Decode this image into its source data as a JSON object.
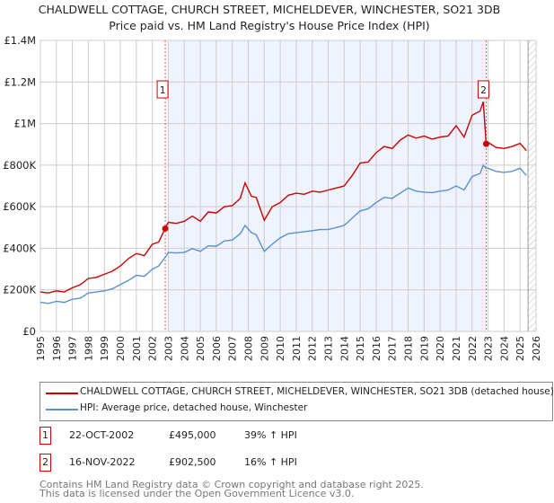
{
  "chart_data": {
    "type": "line",
    "title": "CHALDWELL COTTAGE, CHURCH STREET, MICHELDEVER, WINCHESTER, SO21 3DB",
    "subtitle": "Price paid vs. HM Land Registry's House Price Index (HPI)",
    "xlim": [
      1995,
      2026
    ],
    "ylim": [
      0,
      1400000
    ],
    "yticks": [
      0,
      200000,
      400000,
      600000,
      800000,
      1000000,
      1200000,
      1400000
    ],
    "ytick_labels": [
      "£0",
      "£200K",
      "£400K",
      "£600K",
      "£800K",
      "£1M",
      "£1.2M",
      "£1.4M"
    ],
    "xticks": [
      1995,
      1996,
      1997,
      1998,
      1999,
      2000,
      2001,
      2002,
      2003,
      2004,
      2005,
      2006,
      2007,
      2008,
      2009,
      2010,
      2011,
      2012,
      2013,
      2014,
      2015,
      2016,
      2017,
      2018,
      2019,
      2020,
      2021,
      2022,
      2023,
      2024,
      2025,
      2026
    ],
    "grid": true,
    "series": [
      {
        "name": "CHALDWELL COTTAGE, CHURCH STREET, MICHELDEVER, WINCHESTER, SO21 3DB (detached house)",
        "color": "#cc0000",
        "x": [
          1995,
          1995.5,
          1996,
          1996.5,
          1997,
          1997.5,
          1998,
          1998.5,
          1999,
          1999.5,
          2000,
          2000.5,
          2001,
          2001.5,
          2002,
          2002.4,
          2002.8,
          2003,
          2003.5,
          2004,
          2004.5,
          2005,
          2005.5,
          2006,
          2006.5,
          2007,
          2007.5,
          2007.8,
          2008.2,
          2008.5,
          2009,
          2009.5,
          2010,
          2010.5,
          2011,
          2011.5,
          2012,
          2012.5,
          2013,
          2013.5,
          2014,
          2014.5,
          2015,
          2015.5,
          2016,
          2016.5,
          2017,
          2017.5,
          2018,
          2018.5,
          2019,
          2019.5,
          2020,
          2020.5,
          2021,
          2021.5,
          2022,
          2022.5,
          2022.7,
          2022.88,
          2023,
          2023.5,
          2024,
          2024.5,
          2025,
          2025.4
        ],
        "y": [
          190000,
          185000,
          195000,
          190000,
          210000,
          225000,
          255000,
          260000,
          275000,
          290000,
          315000,
          350000,
          375000,
          365000,
          420000,
          430000,
          495000,
          525000,
          520000,
          530000,
          555000,
          530000,
          575000,
          570000,
          600000,
          605000,
          640000,
          715000,
          650000,
          645000,
          535000,
          600000,
          620000,
          655000,
          665000,
          660000,
          675000,
          670000,
          680000,
          690000,
          700000,
          750000,
          810000,
          815000,
          860000,
          890000,
          880000,
          920000,
          945000,
          930000,
          940000,
          925000,
          935000,
          940000,
          990000,
          935000,
          1040000,
          1060000,
          1105000,
          902500,
          910000,
          885000,
          880000,
          890000,
          905000,
          870000
        ]
      },
      {
        "name": "HPI: Average price, detached house, Winchester",
        "color": "#5b8fd1",
        "x": [
          1995,
          1995.5,
          1996,
          1996.5,
          1997,
          1997.5,
          1998,
          1998.5,
          1999,
          1999.5,
          2000,
          2000.5,
          2001,
          2001.5,
          2002,
          2002.4,
          2002.8,
          2003,
          2003.5,
          2004,
          2004.5,
          2005,
          2005.5,
          2006,
          2006.5,
          2007,
          2007.5,
          2007.8,
          2008.2,
          2008.5,
          2009,
          2009.5,
          2010,
          2010.5,
          2011,
          2011.5,
          2012,
          2012.5,
          2013,
          2013.5,
          2014,
          2014.5,
          2015,
          2015.5,
          2016,
          2016.5,
          2017,
          2017.5,
          2018,
          2018.5,
          2019,
          2019.5,
          2020,
          2020.5,
          2021,
          2021.5,
          2022,
          2022.5,
          2022.7,
          2022.88,
          2023,
          2023.5,
          2024,
          2024.5,
          2025,
          2025.4
        ],
        "y": [
          140000,
          135000,
          145000,
          140000,
          155000,
          160000,
          185000,
          190000,
          195000,
          205000,
          225000,
          245000,
          270000,
          265000,
          300000,
          315000,
          356000,
          380000,
          378000,
          380000,
          398000,
          385000,
          412000,
          410000,
          435000,
          440000,
          470000,
          510000,
          475000,
          465000,
          385000,
          420000,
          450000,
          470000,
          475000,
          480000,
          485000,
          490000,
          490000,
          500000,
          510000,
          545000,
          580000,
          590000,
          620000,
          645000,
          640000,
          665000,
          690000,
          675000,
          670000,
          668000,
          675000,
          680000,
          700000,
          680000,
          745000,
          760000,
          800000,
          785000,
          785000,
          770000,
          765000,
          770000,
          785000,
          750000
        ]
      }
    ],
    "sales": [
      {
        "label": "1",
        "x": 2002.81,
        "price": 495000,
        "date": "22-OCT-2002",
        "price_text": "£495,000",
        "hpi": "39% ↑ HPI"
      },
      {
        "label": "2",
        "x": 2022.88,
        "price": 902500,
        "date": "16-NOV-2022",
        "price_text": "£902,500",
        "hpi": "16% ↑ HPI"
      }
    ],
    "shaded_range": [
      2003.0,
      2022.88
    ],
    "forecast_start": 2025.5
  },
  "footer": {
    "line1": "Contains HM Land Registry data © Crown copyright and database right 2025.",
    "line2": "This data is licensed under the Open Government Licence v3.0."
  }
}
